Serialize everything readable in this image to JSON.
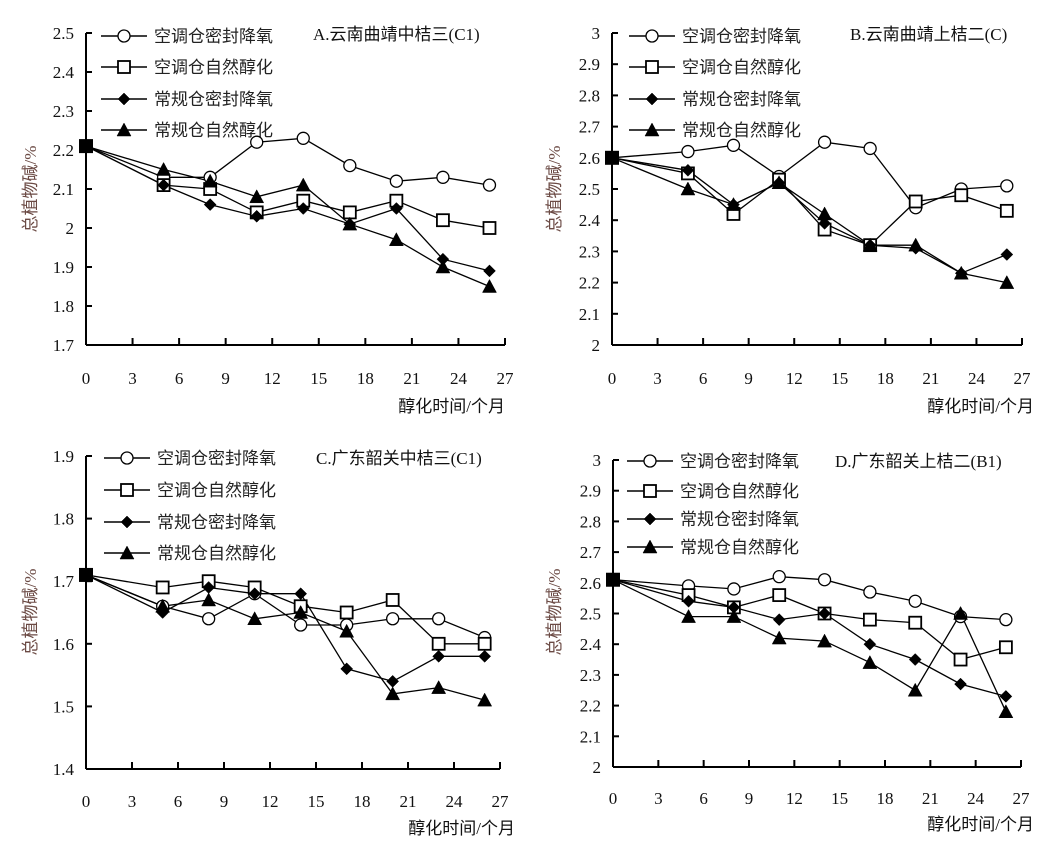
{
  "chart_data": [
    {
      "type": "line",
      "panel": "A",
      "title": "A.云南曲靖中桔三(C1)",
      "xlabel": "醇化时间/个月",
      "ylabel": "总植物碱/%",
      "x": [
        0,
        5,
        8,
        11,
        14,
        17,
        20,
        23,
        26
      ],
      "xlim": [
        0,
        27
      ],
      "xticks": [
        "0",
        "3",
        "6",
        "9",
        "12",
        "15",
        "18",
        "21",
        "24",
        "27"
      ],
      "ylim": [
        1.7,
        2.5
      ],
      "yticks": [
        "1.7",
        "1.8",
        "1.9",
        "2",
        "2.1",
        "2.2",
        "2.3",
        "2.4",
        "2.5"
      ],
      "legend_position": "top-left",
      "grid": false,
      "series": [
        {
          "name": "空调仓密封降氧",
          "marker": "circle-open",
          "values": [
            2.21,
            2.13,
            2.13,
            2.22,
            2.23,
            2.16,
            2.12,
            2.13,
            2.11
          ]
        },
        {
          "name": "空调仓自然醇化",
          "marker": "square-open",
          "values": [
            2.21,
            2.11,
            2.1,
            2.04,
            2.07,
            2.04,
            2.07,
            2.02,
            2.0
          ]
        },
        {
          "name": "常规仓密封降氧",
          "marker": "diamond-filled",
          "values": [
            2.21,
            2.11,
            2.06,
            2.03,
            2.05,
            2.01,
            2.05,
            1.92,
            1.89
          ]
        },
        {
          "name": "常规仓自然醇化",
          "marker": "triangle-filled",
          "values": [
            2.21,
            2.15,
            2.12,
            2.08,
            2.11,
            2.01,
            1.97,
            1.9,
            1.85
          ]
        }
      ]
    },
    {
      "type": "line",
      "panel": "B",
      "title": "B.云南曲靖上桔二(C)",
      "xlabel": "醇化时间/个月",
      "ylabel": "总植物碱/%",
      "x": [
        0,
        5,
        8,
        11,
        14,
        17,
        20,
        23,
        26
      ],
      "xlim": [
        0,
        27
      ],
      "xticks": [
        "0",
        "3",
        "6",
        "9",
        "12",
        "15",
        "18",
        "21",
        "24",
        "27"
      ],
      "ylim": [
        2.0,
        3.0
      ],
      "yticks": [
        "2",
        "2.1",
        "2.2",
        "2.3",
        "2.4",
        "2.5",
        "2.6",
        "2.7",
        "2.8",
        "2.9",
        "3"
      ],
      "legend_position": "top-left",
      "grid": false,
      "series": [
        {
          "name": "空调仓密封降氧",
          "marker": "circle-open",
          "values": [
            2.6,
            2.62,
            2.64,
            2.54,
            2.65,
            2.63,
            2.44,
            2.5,
            2.51
          ]
        },
        {
          "name": "空调仓自然醇化",
          "marker": "square-open",
          "values": [
            2.6,
            2.55,
            2.42,
            2.53,
            2.37,
            2.32,
            2.46,
            2.48,
            2.43
          ]
        },
        {
          "name": "常规仓密封降氧",
          "marker": "diamond-filled",
          "values": [
            2.6,
            2.56,
            2.45,
            2.52,
            2.39,
            2.32,
            2.31,
            2.23,
            2.29
          ]
        },
        {
          "name": "常规仓自然醇化",
          "marker": "triangle-filled",
          "values": [
            2.6,
            2.5,
            2.45,
            2.52,
            2.42,
            2.32,
            2.32,
            2.23,
            2.2
          ]
        }
      ]
    },
    {
      "type": "line",
      "panel": "C",
      "title": "C.广东韶关中桔三(C1)",
      "xlabel": "醇化时间/个月",
      "ylabel": "总植物碱/%",
      "x": [
        0,
        5,
        8,
        11,
        14,
        17,
        20,
        23,
        26
      ],
      "xlim": [
        0,
        27
      ],
      "xticks": [
        "0",
        "3",
        "6",
        "9",
        "12",
        "15",
        "18",
        "21",
        "24",
        "27"
      ],
      "ylim": [
        1.4,
        1.9
      ],
      "yticks": [
        "1.4",
        "1.5",
        "1.6",
        "1.7",
        "1.8",
        "1.9"
      ],
      "legend_position": "top-left",
      "grid": false,
      "series": [
        {
          "name": "空调仓密封降氧",
          "marker": "circle-open",
          "values": [
            1.71,
            1.66,
            1.64,
            1.68,
            1.63,
            1.63,
            1.64,
            1.64,
            1.61
          ]
        },
        {
          "name": "空调仓自然醇化",
          "marker": "square-open",
          "values": [
            1.71,
            1.69,
            1.7,
            1.69,
            1.66,
            1.65,
            1.67,
            1.6,
            1.6
          ]
        },
        {
          "name": "常规仓密封降氧",
          "marker": "diamond-filled",
          "values": [
            1.71,
            1.65,
            1.69,
            1.68,
            1.68,
            1.56,
            1.54,
            1.58,
            1.58
          ]
        },
        {
          "name": "常规仓自然醇化",
          "marker": "triangle-filled",
          "values": [
            1.71,
            1.66,
            1.67,
            1.64,
            1.65,
            1.62,
            1.52,
            1.53,
            1.51
          ]
        }
      ]
    },
    {
      "type": "line",
      "panel": "D",
      "title": "D.广东韶关上桔二(B1)",
      "xlabel": "醇化时间/个月",
      "ylabel": "总植物碱/%",
      "x": [
        0,
        5,
        8,
        11,
        14,
        17,
        20,
        23,
        26
      ],
      "xlim": [
        0,
        27
      ],
      "xticks": [
        "0",
        "3",
        "6",
        "9",
        "12",
        "15",
        "18",
        "21",
        "24",
        "27"
      ],
      "ylim": [
        2.0,
        3.0
      ],
      "yticks": [
        "2",
        "2.1",
        "2.2",
        "2.3",
        "2.4",
        "2.5",
        "2.6",
        "2.7",
        "2.8",
        "2.9",
        "3"
      ],
      "legend_position": "top-left",
      "grid": false,
      "series": [
        {
          "name": "空调仓密封降氧",
          "marker": "circle-open",
          "values": [
            2.61,
            2.59,
            2.58,
            2.62,
            2.61,
            2.57,
            2.54,
            2.49,
            2.48
          ]
        },
        {
          "name": "空调仓自然醇化",
          "marker": "square-open",
          "values": [
            2.61,
            2.56,
            2.52,
            2.56,
            2.5,
            2.48,
            2.47,
            2.35,
            2.39
          ]
        },
        {
          "name": "常规仓密封降氧",
          "marker": "diamond-filled",
          "values": [
            2.61,
            2.54,
            2.52,
            2.48,
            2.5,
            2.4,
            2.35,
            2.27,
            2.23
          ]
        },
        {
          "name": "常规仓自然醇化",
          "marker": "triangle-filled",
          "values": [
            2.61,
            2.49,
            2.49,
            2.42,
            2.41,
            2.34,
            2.25,
            2.5,
            2.18
          ]
        }
      ]
    }
  ]
}
